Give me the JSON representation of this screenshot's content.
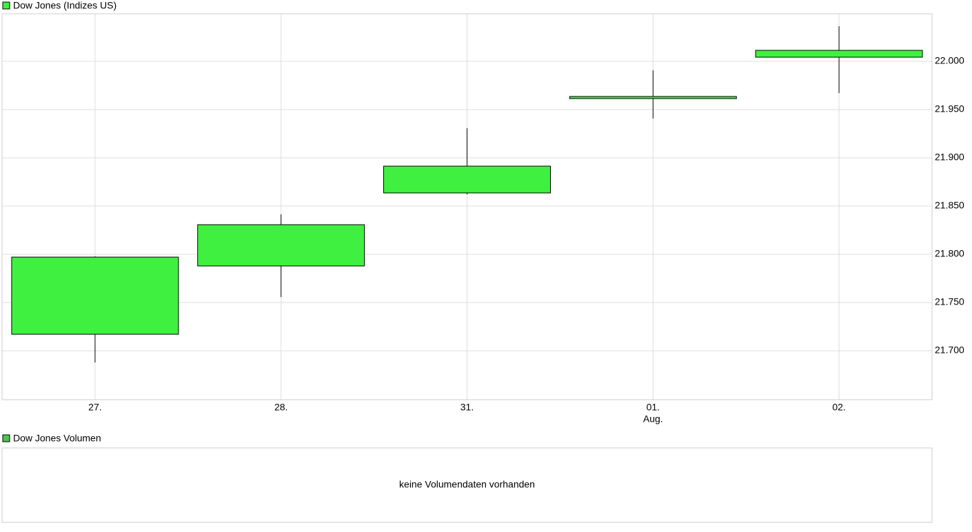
{
  "chart_data": [
    {
      "type": "candlestick",
      "legend": "Dow Jones (Indizes US)",
      "color": "#40f040",
      "categories": [
        "27.",
        "28.",
        "31.",
        "01.",
        "02."
      ],
      "sublabels": [
        null,
        null,
        null,
        "Aug.",
        null
      ],
      "open": [
        21717.1,
        21787.9,
        21863.6,
        21961.4,
        22004.3
      ],
      "close": [
        21797.1,
        21830.7,
        21891.4,
        21963.6,
        22011.4
      ],
      "high": [
        21797.9,
        21841.4,
        21930.7,
        21990.7,
        22036.4
      ],
      "low": [
        21687.9,
        21755.7,
        21862.1,
        21940.7,
        21967.1
      ],
      "ylim": [
        21649.3,
        22049.3
      ],
      "yticks": [
        {
          "value": 21700,
          "label": "21.700"
        },
        {
          "value": 21750,
          "label": "21.750"
        },
        {
          "value": 21800,
          "label": "21.800"
        },
        {
          "value": 21850,
          "label": "21.850"
        },
        {
          "value": 21900,
          "label": "21.900"
        },
        {
          "value": 21950,
          "label": "21.950"
        },
        {
          "value": 22000,
          "label": "22.000"
        }
      ],
      "grid": true
    },
    {
      "type": "volume",
      "legend": "Dow Jones Volumen",
      "color": "#4ec44e",
      "message": "keine Volumendaten vorhanden"
    }
  ]
}
